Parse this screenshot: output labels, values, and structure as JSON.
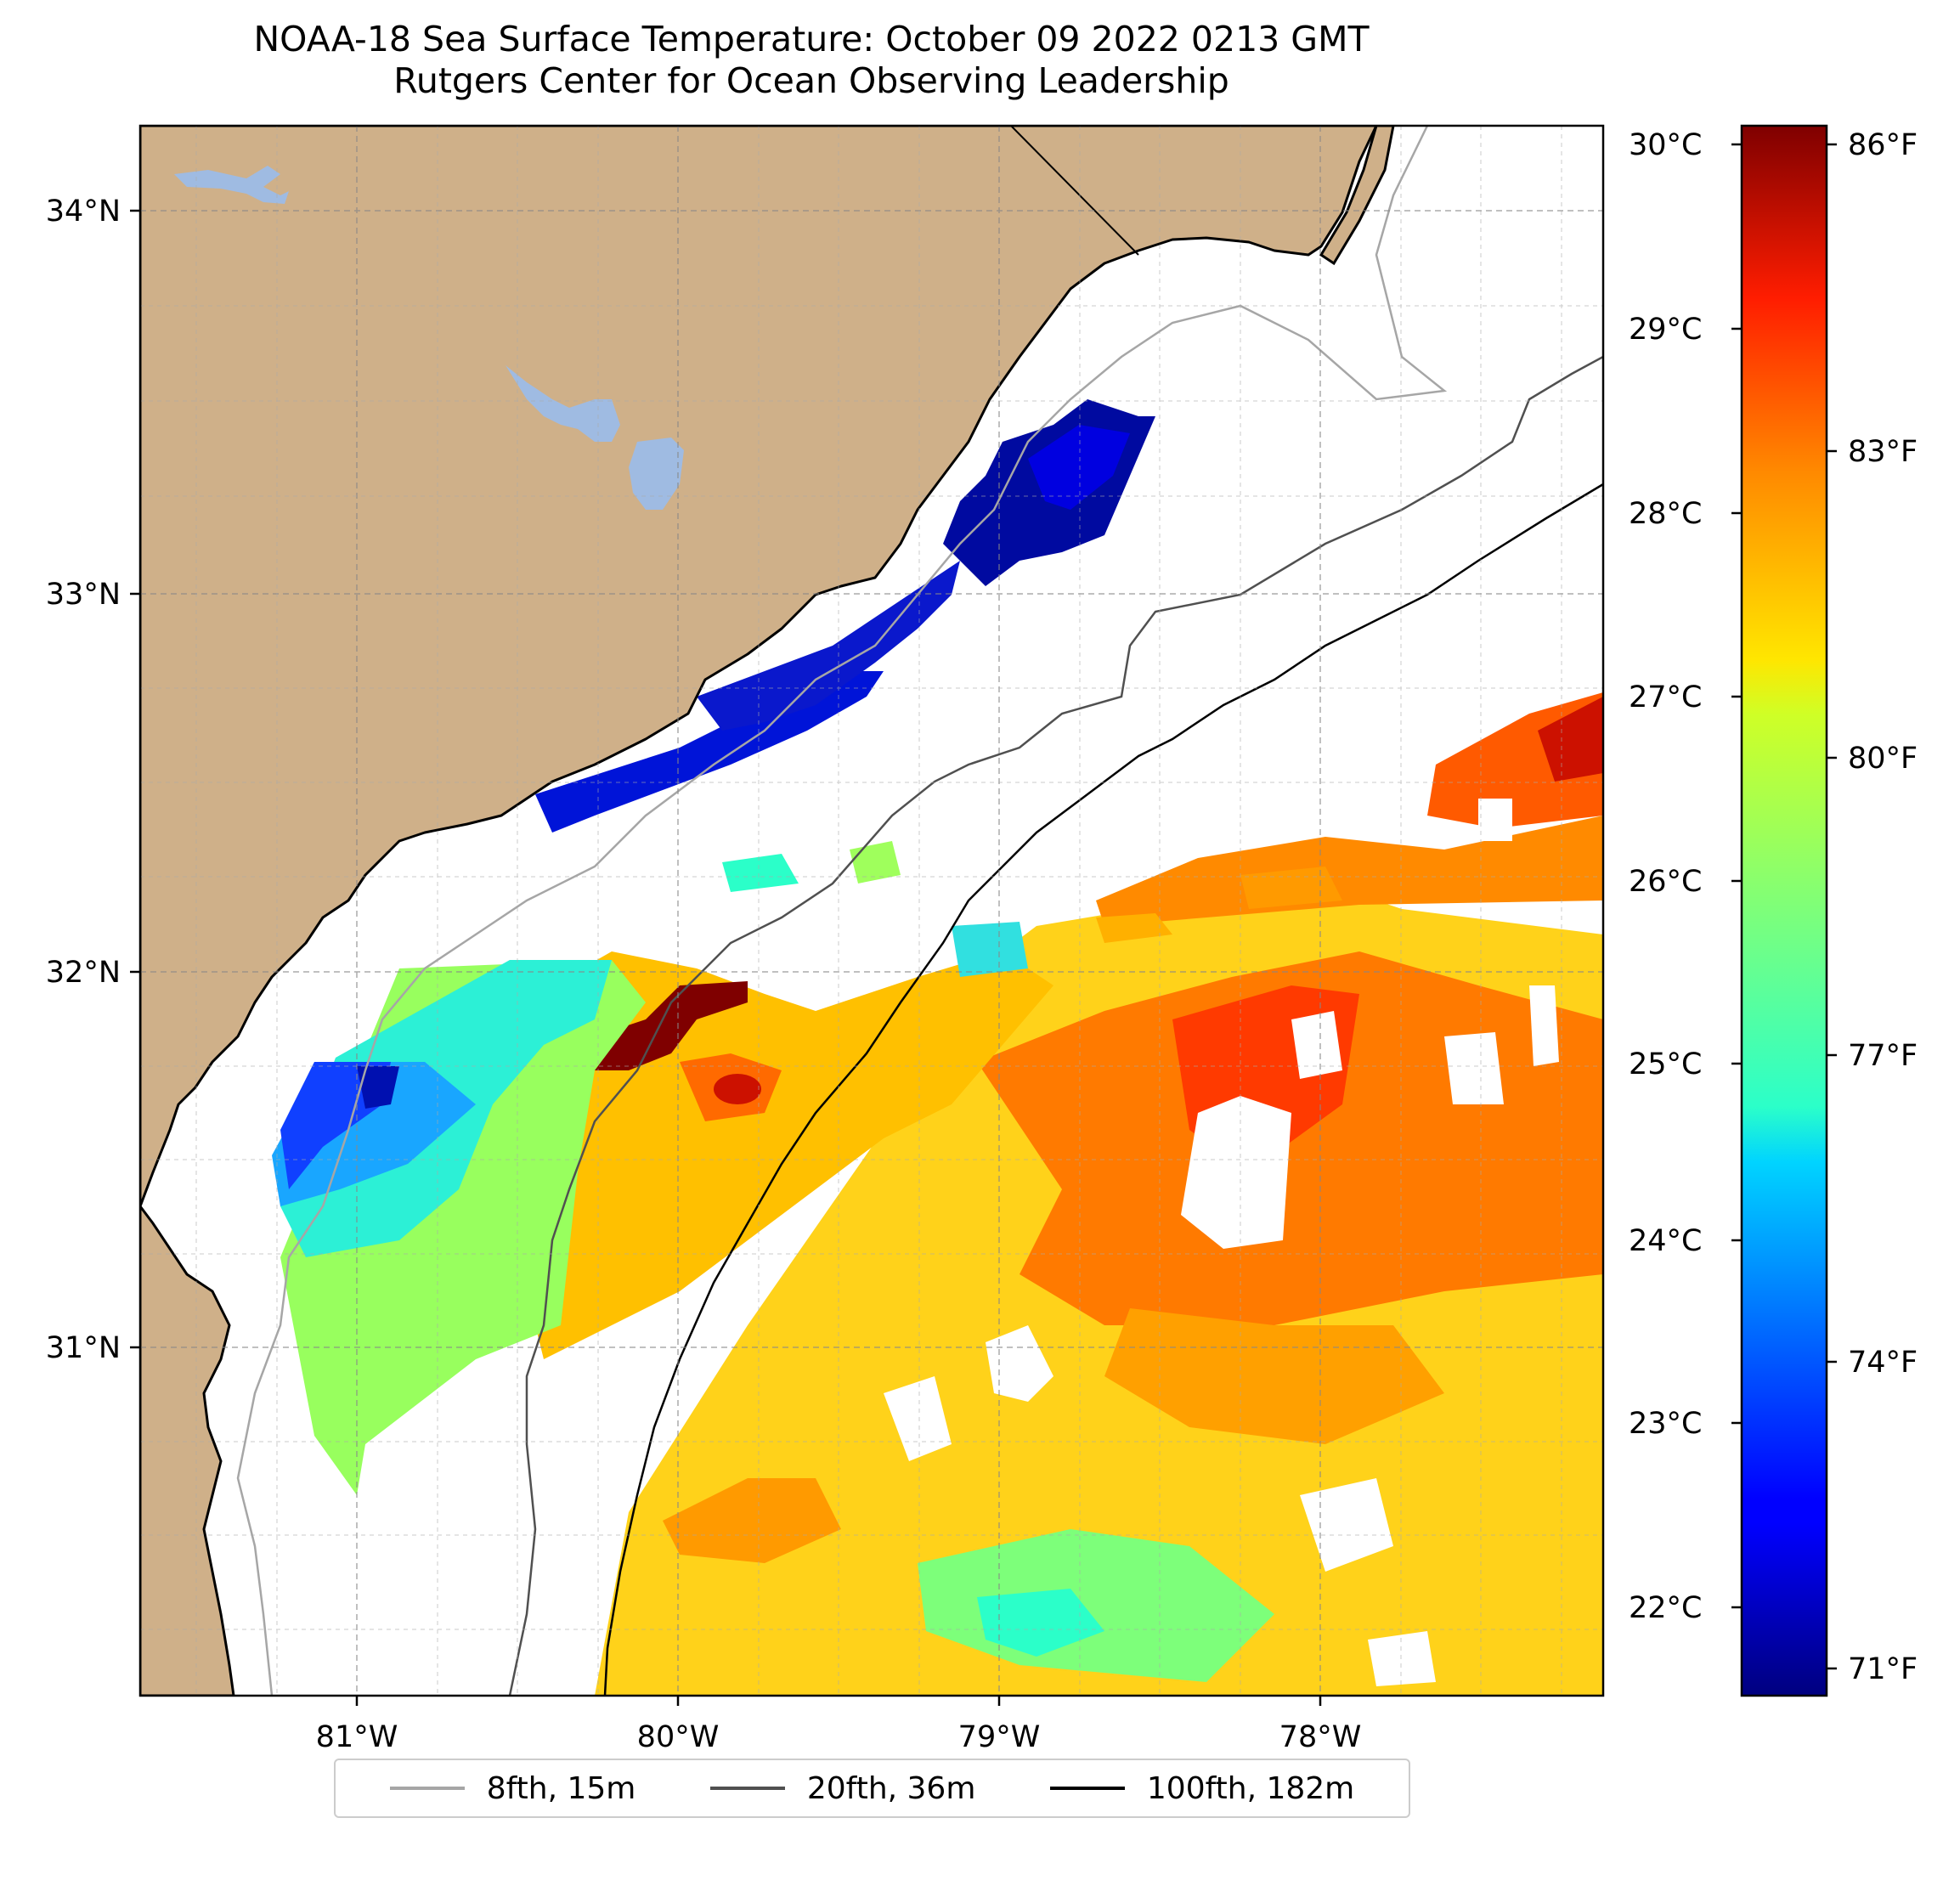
{
  "title": {
    "line1": "NOAA-18 Sea Surface Temperature: October 09 2022 0213 GMT",
    "line2": "Rutgers Center for Ocean Observing Leadership"
  },
  "map": {
    "region": "South Carolina / Georgia coast and offshore Atlantic",
    "land_color": "#cfb089",
    "water_color": "#9fbbe2",
    "no_data_color": "#ffffff",
    "gridlines": "dashed gray",
    "lat_labels": [
      "34°N",
      "33°N",
      "32°N",
      "31°N"
    ],
    "lon_labels": [
      "81°W",
      "80°W",
      "79°W",
      "78°W"
    ]
  },
  "colorbar": {
    "colormap": "jet",
    "celsius_labels": [
      "30°C",
      "29°C",
      "28°C",
      "27°C",
      "26°C",
      "25°C",
      "24°C",
      "23°C",
      "22°C"
    ],
    "fahrenheit_labels": [
      "86°F",
      "83°F",
      "80°F",
      "77°F",
      "74°F",
      "71°F"
    ],
    "range_celsius": [
      21.65,
      30.1
    ]
  },
  "legend": {
    "items": [
      {
        "label": "8fth, 15m",
        "color": "#a6a6a6"
      },
      {
        "label": "20fth, 36m",
        "color": "#505050"
      },
      {
        "label": "100fth, 182m",
        "color": "#000000"
      }
    ]
  }
}
